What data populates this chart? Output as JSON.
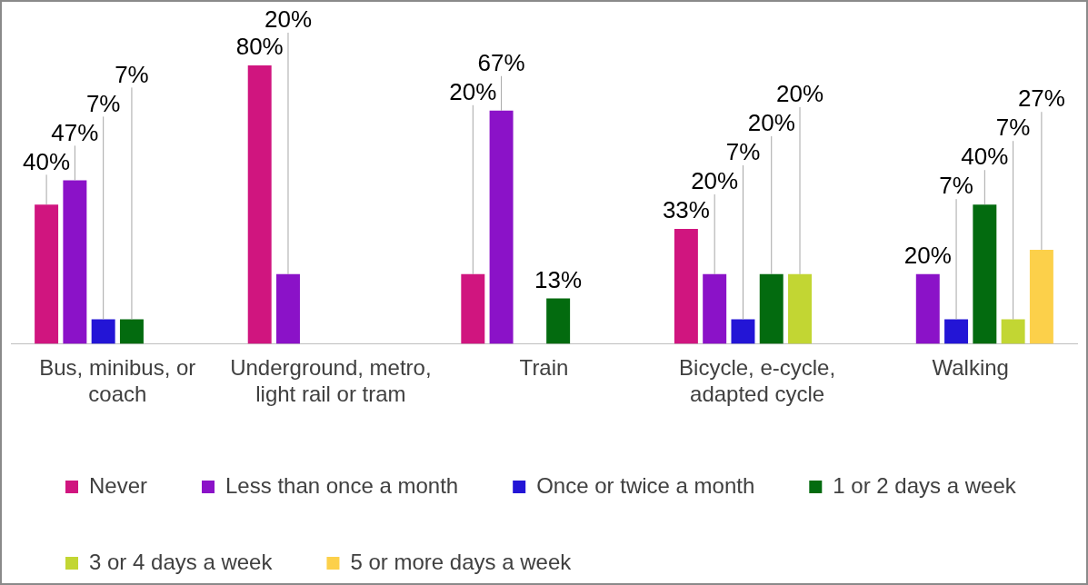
{
  "chart_data": {
    "type": "bar",
    "categories": [
      "Bus, minibus, or coach",
      "Underground, metro, light rail or tram",
      "Train",
      "Bicycle, e-cycle, adapted cycle",
      "Walking"
    ],
    "series": [
      {
        "name": "Never",
        "color": "#d0157f",
        "values": [
          40,
          80,
          20,
          33,
          null
        ],
        "value_labels": [
          "40%",
          "80%",
          "20%",
          "33%",
          null
        ]
      },
      {
        "name": "Less than once a month",
        "color": "#8b12c8",
        "values": [
          47,
          20,
          67,
          20,
          20
        ],
        "value_labels": [
          "47%",
          "20%",
          "67%",
          "20%",
          "20%"
        ]
      },
      {
        "name": "Once or twice a month",
        "color": "#2315d6",
        "values": [
          7,
          null,
          null,
          7,
          7
        ],
        "value_labels": [
          "7%",
          null,
          null,
          "7%",
          "7%"
        ]
      },
      {
        "name": "1 or 2 days a week",
        "color": "#036b0f",
        "values": [
          7,
          null,
          13,
          20,
          40
        ],
        "value_labels": [
          "7%",
          null,
          "13%",
          "20%",
          "40%"
        ]
      },
      {
        "name": "3 or 4 days a week",
        "color": "#c2d633",
        "values": [
          null,
          null,
          null,
          20,
          7
        ],
        "value_labels": [
          null,
          null,
          null,
          "20%",
          "7%"
        ]
      },
      {
        "name": "5 or more days a week",
        "color": "#fcd04a",
        "values": [
          null,
          null,
          null,
          null,
          27
        ],
        "value_labels": [
          null,
          null,
          null,
          null,
          "27%"
        ]
      }
    ],
    "grid": false,
    "legend": "bottom"
  }
}
